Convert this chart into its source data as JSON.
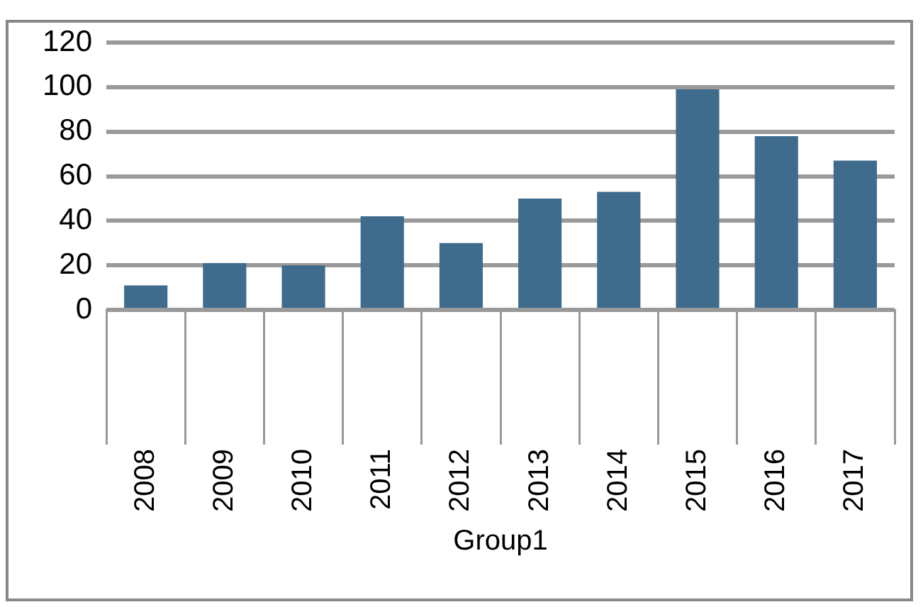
{
  "chart_data": {
    "type": "bar",
    "xlabel": "Group1",
    "categories": [
      "2008",
      "2009",
      "2010",
      "2011",
      "2012",
      "2013",
      "2014",
      "2015",
      "2016",
      "2017"
    ],
    "series": [
      {
        "color": "#3f6b8c",
        "values": [
          11,
          21,
          20,
          42,
          30,
          50,
          53,
          99,
          78,
          67
        ]
      }
    ],
    "ylim": [
      0,
      120
    ],
    "yticks": [
      0,
      20,
      40,
      60,
      80,
      100,
      120
    ],
    "grid": "y",
    "legend": false
  }
}
